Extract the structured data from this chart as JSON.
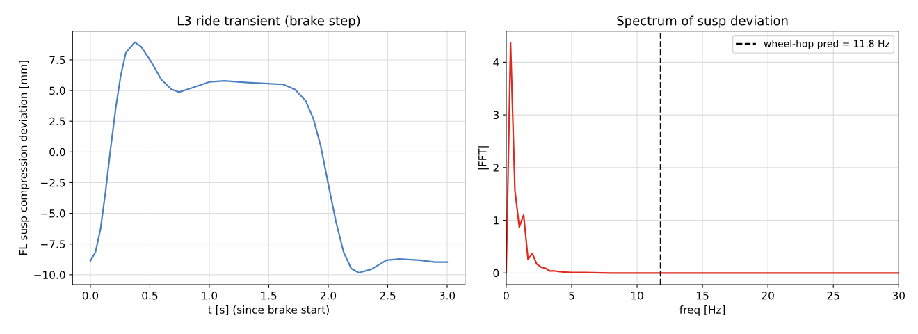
{
  "chart_data": [
    {
      "type": "line",
      "title": "L3 ride transient (brake step)",
      "xlabel": "t [s] (since brake start)",
      "ylabel": "FL susp compression deviation [mm]",
      "xlim": [
        -0.15,
        3.15
      ],
      "xticks": [
        {
          "value": 0,
          "label": "0.0"
        },
        {
          "value": 0.5,
          "label": "0.5"
        },
        {
          "value": 1,
          "label": "1.0"
        },
        {
          "value": 1.5,
          "label": "1.5"
        },
        {
          "value": 2,
          "label": "2.0"
        },
        {
          "value": 2.5,
          "label": "2.5"
        },
        {
          "value": 3,
          "label": "3.0"
        }
      ],
      "ylim": [
        -10.8,
        9.84
      ],
      "yticks": [
        {
          "value": -10,
          "label": "−10.0"
        },
        {
          "value": -7.5,
          "label": "−7.5"
        },
        {
          "value": -5,
          "label": "−5.0"
        },
        {
          "value": -2.5,
          "label": "−2.5"
        },
        {
          "value": 0,
          "label": "0.0"
        },
        {
          "value": 2.5,
          "label": "2.5"
        },
        {
          "value": 5,
          "label": "5.0"
        },
        {
          "value": 7.5,
          "label": "7.5"
        }
      ],
      "grid": true,
      "series": [
        {
          "color": "#4a7fc1",
          "x": [
            0,
            0.043,
            0.085,
            0.128,
            0.17,
            0.213,
            0.255,
            0.298,
            0.373,
            0.426,
            0.511,
            0.596,
            0.681,
            0.745,
            0.85,
            1.0,
            1.128,
            1.32,
            1.49,
            1.62,
            1.72,
            1.81,
            1.874,
            1.937,
            2.0,
            2.065,
            2.129,
            2.193,
            2.257,
            2.363,
            2.49,
            2.597,
            2.768,
            2.895,
            3.0
          ],
          "values": [
            -8.87,
            -8.15,
            -6.3,
            -3.2,
            0.27,
            3.55,
            6.2,
            8.07,
            8.93,
            8.58,
            7.35,
            5.9,
            5.1,
            4.87,
            5.2,
            5.7,
            5.79,
            5.65,
            5.56,
            5.5,
            5.09,
            4.17,
            2.73,
            0.47,
            -2.6,
            -5.69,
            -8.15,
            -9.49,
            -9.84,
            -9.55,
            -8.81,
            -8.71,
            -8.81,
            -8.97,
            -8.97
          ]
        }
      ]
    },
    {
      "type": "line",
      "title": "Spectrum of susp deviation",
      "xlabel": "freq [Hz]",
      "ylabel": "|FFT|",
      "xlim": [
        0,
        30
      ],
      "xticks": [
        0,
        5,
        10,
        15,
        20,
        25,
        30
      ],
      "ylim": [
        -0.22,
        4.59
      ],
      "yticks": [
        0,
        1,
        2,
        3,
        4
      ],
      "grid": true,
      "legend": "top right",
      "ref_lines": [
        {
          "axis": "x",
          "value": 11.8,
          "label": "wheel-hop pred = 11.8 Hz",
          "color": "#000000",
          "line_style": "dashed"
        }
      ],
      "series": [
        {
          "color": "#e0281e",
          "x": [
            0,
            0.333,
            0.667,
            1.0,
            1.333,
            1.667,
            2.0,
            2.333,
            2.667,
            3.0,
            3.333,
            3.667,
            4.0,
            4.333,
            5.0,
            6.0,
            8.0,
            10.0,
            30.0
          ],
          "values": [
            0.0,
            4.37,
            1.57,
            0.87,
            1.1,
            0.26,
            0.37,
            0.17,
            0.11,
            0.09,
            0.04,
            0.04,
            0.03,
            0.02,
            0.01,
            0.01,
            0.0,
            0.0,
            0.0
          ]
        }
      ]
    }
  ]
}
